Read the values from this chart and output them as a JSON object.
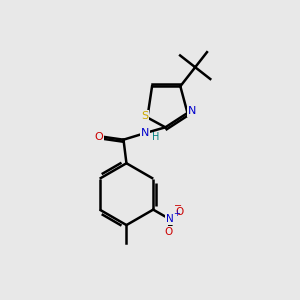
{
  "background_color": "#e8e8e8",
  "atom_colors": {
    "C": "#000000",
    "N": "#0000cc",
    "O": "#cc0000",
    "S": "#ccaa00",
    "H": "#008080"
  },
  "bond_color": "#000000",
  "bond_width": 1.8,
  "figsize": [
    3.0,
    3.0
  ],
  "dpi": 100
}
